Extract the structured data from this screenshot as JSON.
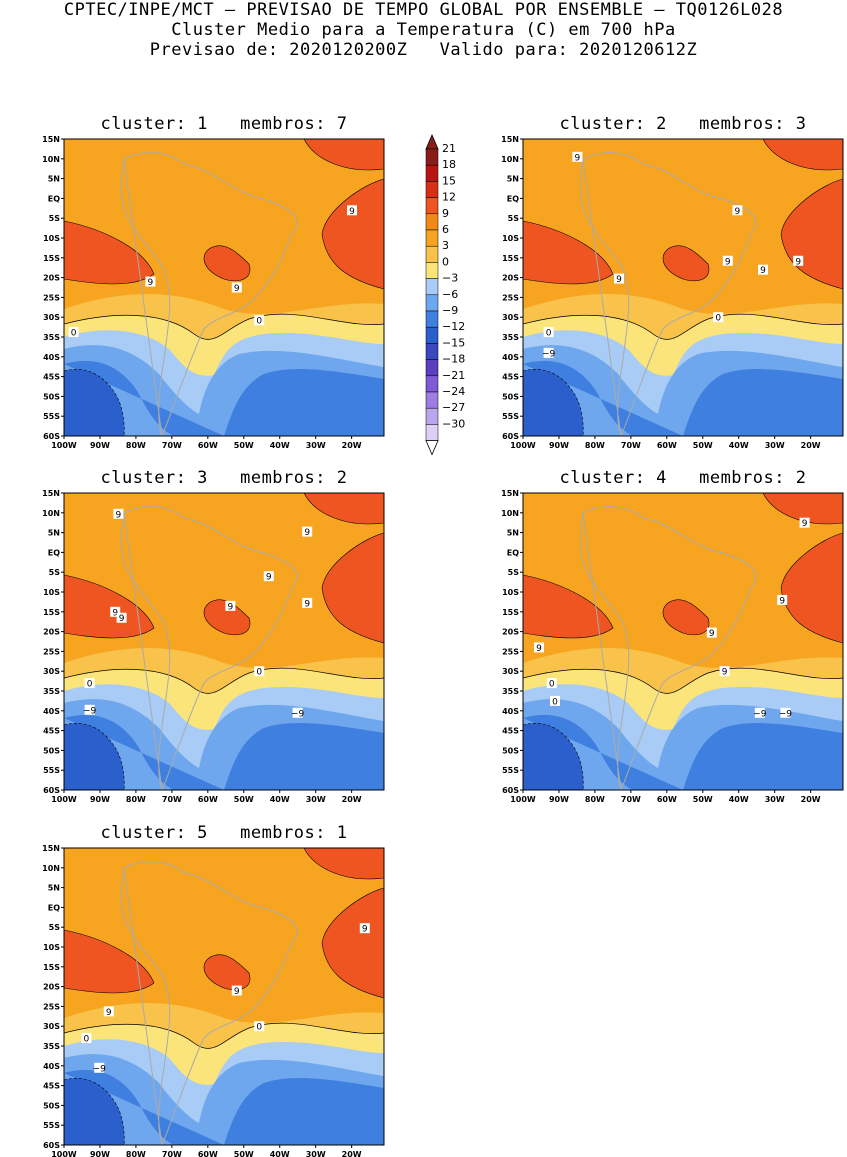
{
  "header": {
    "line1": "CPTEC/INPE/MCT – PREVISAO DE TEMPO GLOBAL POR ENSEMBLE – TQ0126L028",
    "line2": "Cluster Medio para a Temperatura (C) em 700 hPa",
    "line3": "Previsao de: 2020120200Z   Valido para: 2020120612Z"
  },
  "axes": {
    "y_ticks": [
      "15N",
      "10N",
      "5N",
      "EQ",
      "5S",
      "10S",
      "15S",
      "20S",
      "25S",
      "30S",
      "35S",
      "40S",
      "45S",
      "50S",
      "55S",
      "60S"
    ],
    "x_ticks": [
      "100W",
      "90W",
      "80W",
      "70W",
      "60W",
      "50W",
      "40W",
      "30W",
      "20W"
    ]
  },
  "colorbar": {
    "labels": [
      "21",
      "18",
      "15",
      "12",
      "9",
      "6",
      "3",
      "0",
      "−3",
      "−6",
      "−9",
      "−12",
      "−15",
      "−18",
      "−21",
      "−24",
      "−27",
      "−30"
    ],
    "colors": [
      "#8b1a1a",
      "#b81414",
      "#d83015",
      "#ee5520",
      "#f08a14",
      "#f7a520",
      "#f9c24a",
      "#fbe47a",
      "#a8ccf5",
      "#6ea7ee",
      "#3f7fe0",
      "#2a5fcc",
      "#3a48c0",
      "#5a3fc0",
      "#7d5ad6",
      "#9c7ee2",
      "#bba6ee",
      "#dcd0f8"
    ]
  },
  "panels": [
    {
      "title": "cluster: 1   membros: 7",
      "labels": [
        "9",
        "9",
        "9",
        "0",
        "0"
      ]
    },
    {
      "title": "cluster: 2   membros: 3",
      "labels": [
        "9",
        "9",
        "9",
        "9",
        "9",
        "9",
        "0",
        "0",
        "−9"
      ]
    },
    {
      "title": "cluster: 3   membros: 2",
      "labels": [
        "9",
        "9",
        "9",
        "9",
        "9",
        "9",
        "9",
        "0",
        "0",
        "−9",
        "−9"
      ]
    },
    {
      "title": "cluster: 4   membros: 2",
      "labels": [
        "9",
        "9",
        "9",
        "9",
        "9",
        "0",
        "0",
        "−9",
        "−9"
      ]
    },
    {
      "title": "cluster: 5   membros: 1",
      "labels": [
        "9",
        "9",
        "9",
        "0",
        "0",
        "−9"
      ]
    }
  ]
}
